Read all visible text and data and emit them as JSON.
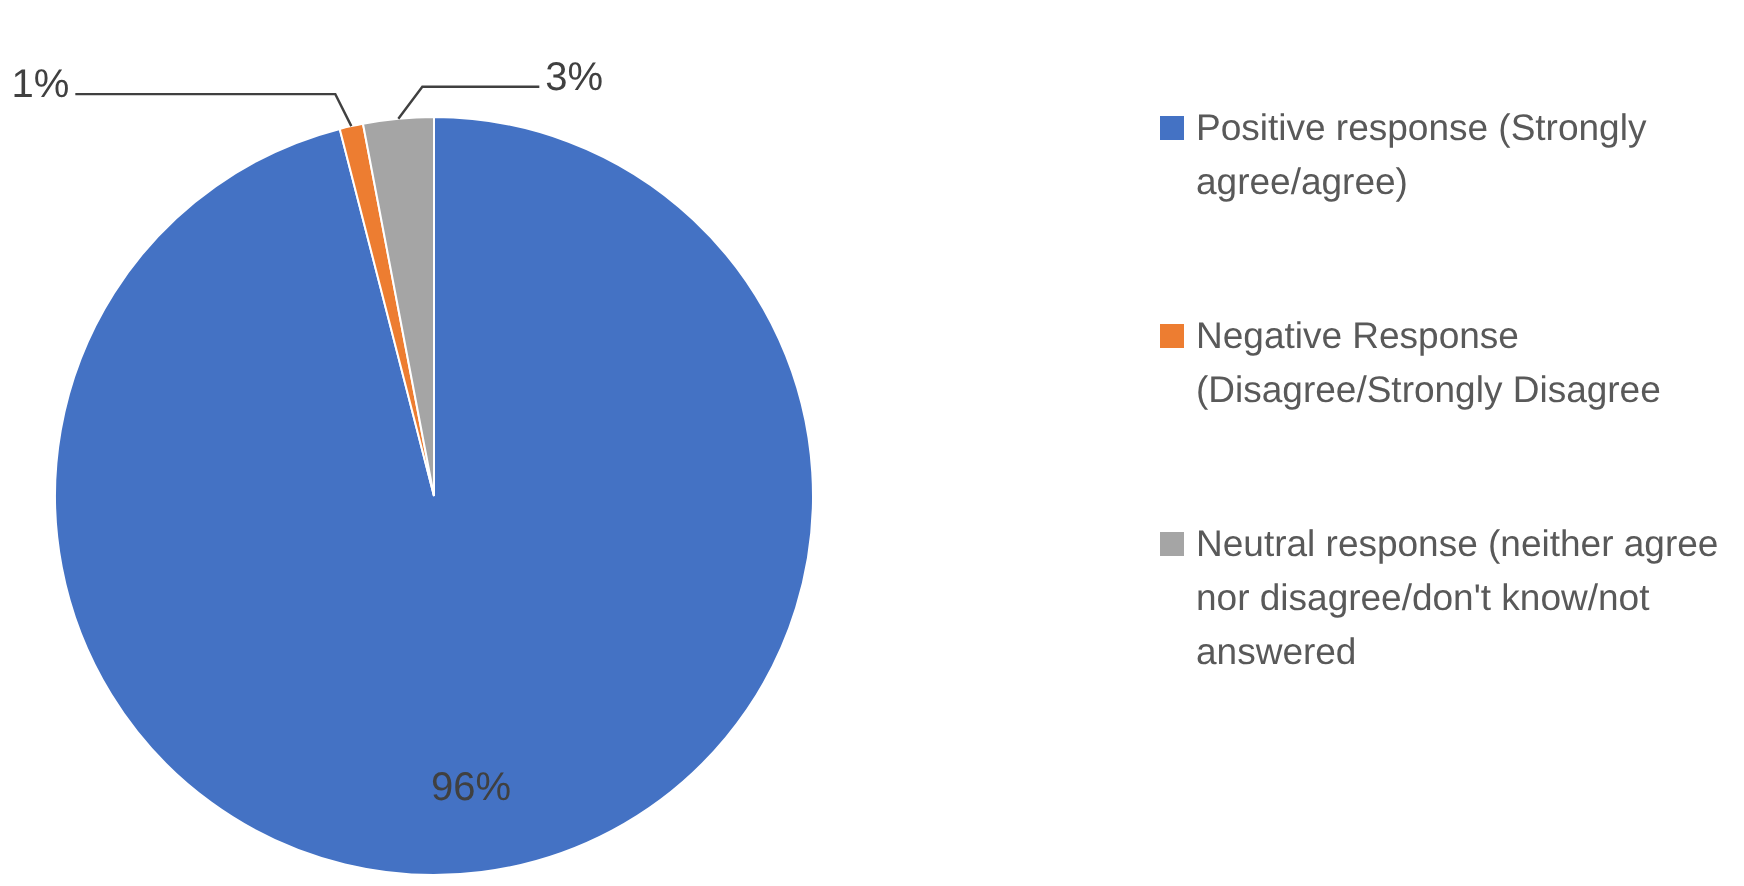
{
  "chart_data": {
    "type": "pie",
    "categories": [
      "Positive response (Strongly agree/agree)",
      "Negative Response (Disagree/Strongly Disagree",
      "Neutral response (neither agree nor disagree/don't know/not answered"
    ],
    "values": [
      96,
      1,
      3
    ],
    "colors": [
      "#4472c4",
      "#ed7d31",
      "#a5a5a5"
    ],
    "value_labels": [
      "96%",
      "1%",
      "3%"
    ],
    "legend": "right"
  }
}
